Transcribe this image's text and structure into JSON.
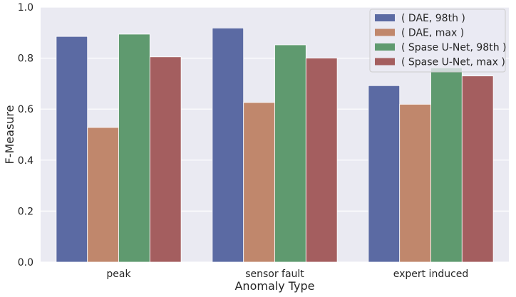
{
  "chart_data": {
    "type": "bar",
    "title": "",
    "xlabel": "Anomaly Type",
    "ylabel": "F-Measure",
    "ylim": [
      0,
      1.0
    ],
    "yticks": [
      "0.0",
      "0.2",
      "0.4",
      "0.6",
      "0.8",
      "1.0"
    ],
    "grid": true,
    "legend_position": "top-right",
    "categories": [
      "peak",
      "sensor fault",
      "expert induced"
    ],
    "series": [
      {
        "name": "( DAE, 98th )",
        "color": "#5b6aa3",
        "values": [
          0.885,
          0.918,
          0.692
        ]
      },
      {
        "name": "( DAE, max )",
        "color": "#c0876c",
        "values": [
          0.528,
          0.626,
          0.619
        ]
      },
      {
        "name": "( Spase U-Net, 98th )",
        "color": "#5f9a6f",
        "values": [
          0.894,
          0.852,
          0.762
        ]
      },
      {
        "name": "( Spase U-Net, max )",
        "color": "#a45e5f",
        "values": [
          0.805,
          0.8,
          0.73
        ]
      }
    ],
    "background_color": "#eaeaf2"
  }
}
